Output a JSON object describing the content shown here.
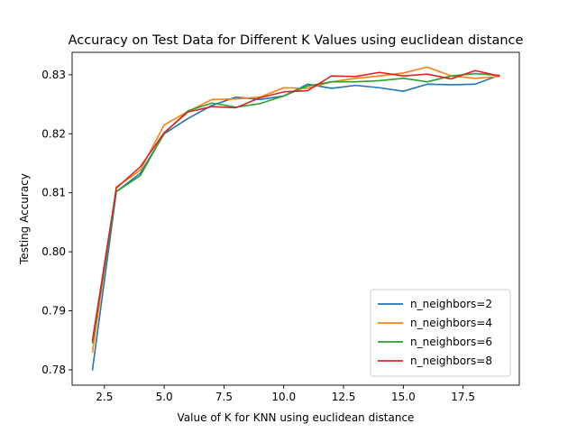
{
  "chart_data": {
    "type": "line",
    "title": "Accuracy on Test Data for Different K Values using euclidean distance",
    "xlabel": "Value of K for KNN using euclidean distance",
    "ylabel": "Testing Accuracy",
    "xlim": [
      1.15,
      19.85
    ],
    "ylim": [
      0.7774,
      0.8338
    ],
    "xticks": [
      2.5,
      5.0,
      7.5,
      10.0,
      12.5,
      15.0,
      17.5
    ],
    "xtick_labels": [
      "2.5",
      "5.0",
      "7.5",
      "10.0",
      "12.5",
      "15.0",
      "17.5"
    ],
    "yticks": [
      0.78,
      0.79,
      0.8,
      0.81,
      0.82,
      0.83
    ],
    "ytick_labels": [
      "0.78",
      "0.79",
      "0.80",
      "0.81",
      "0.82",
      "0.83"
    ],
    "grid": false,
    "legend_position": "lower-right",
    "x": [
      2,
      3,
      4,
      5,
      6,
      7,
      8,
      9,
      10,
      11,
      12,
      13,
      14,
      15,
      16,
      17,
      18,
      19
    ],
    "series": [
      {
        "name": "n_neighbors=2",
        "color": "#1f77b4",
        "values": [
          0.78,
          0.8102,
          0.8133,
          0.82,
          0.8226,
          0.8248,
          0.8262,
          0.8258,
          0.8264,
          0.8284,
          0.8277,
          0.8282,
          0.8278,
          0.8272,
          0.8284,
          0.8283,
          0.8284,
          0.8299
        ]
      },
      {
        "name": "n_neighbors=4",
        "color": "#ff7f0e",
        "values": [
          0.783,
          0.811,
          0.8138,
          0.8215,
          0.8238,
          0.8258,
          0.8259,
          0.8262,
          0.8278,
          0.8277,
          0.8288,
          0.8294,
          0.8298,
          0.8303,
          0.8313,
          0.8298,
          0.8294,
          0.8297
        ]
      },
      {
        "name": "n_neighbors=6",
        "color": "#2ca02c",
        "values": [
          0.7846,
          0.8102,
          0.8129,
          0.8201,
          0.8239,
          0.8252,
          0.8245,
          0.8251,
          0.8264,
          0.8281,
          0.8288,
          0.8288,
          0.829,
          0.8294,
          0.8288,
          0.8298,
          0.8302,
          0.8299
        ]
      },
      {
        "name": "n_neighbors=8",
        "color": "#d62728",
        "values": [
          0.785,
          0.8108,
          0.8144,
          0.8202,
          0.8237,
          0.8246,
          0.8244,
          0.8261,
          0.8271,
          0.8273,
          0.8298,
          0.8297,
          0.8304,
          0.8298,
          0.8301,
          0.8293,
          0.8307,
          0.8298
        ]
      }
    ]
  }
}
